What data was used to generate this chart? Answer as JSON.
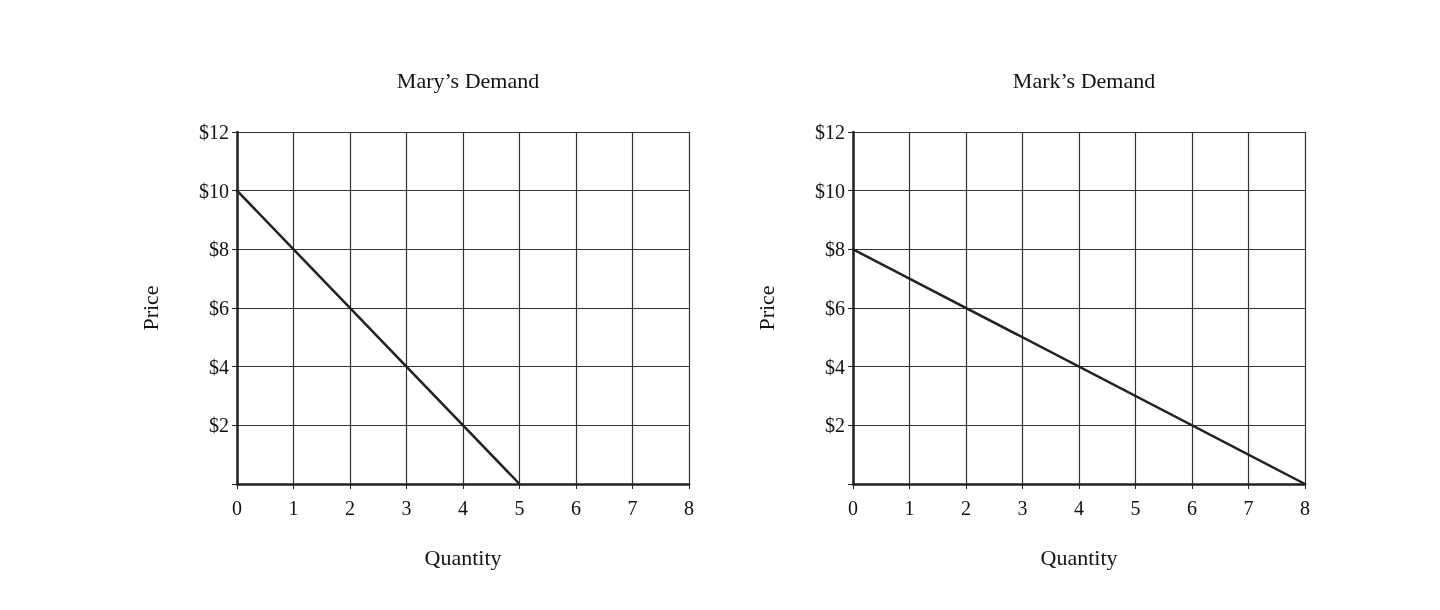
{
  "chart_data": [
    {
      "type": "line",
      "title": "Mary’s Demand",
      "xlabel": "Quantity",
      "ylabel": "Price",
      "x": [
        0,
        5
      ],
      "values": [
        10,
        0
      ],
      "color": "#222222",
      "xlim": [
        0,
        8
      ],
      "xticks": [
        0,
        1,
        2,
        3,
        4,
        5,
        6,
        7,
        8
      ],
      "ylim": [
        0,
        12
      ],
      "yticks": [
        {
          "value": 0,
          "label": null
        },
        {
          "value": 2,
          "label": "$2"
        },
        {
          "value": 4,
          "label": "$4"
        },
        {
          "value": 6,
          "label": "$6"
        },
        {
          "value": 8,
          "label": "$8"
        },
        {
          "value": 10,
          "label": "$10"
        },
        {
          "value": 12,
          "label": "$12"
        }
      ],
      "grid": true,
      "marker": "none",
      "line_style": "solid"
    },
    {
      "type": "line",
      "title": "Mark’s Demand",
      "xlabel": "Quantity",
      "ylabel": "Price",
      "x": [
        0,
        8
      ],
      "values": [
        8,
        0
      ],
      "color": "#222222",
      "xlim": [
        0,
        8
      ],
      "xticks": [
        0,
        1,
        2,
        3,
        4,
        5,
        6,
        7,
        8
      ],
      "ylim": [
        0,
        12
      ],
      "yticks": [
        {
          "value": 0,
          "label": null
        },
        {
          "value": 2,
          "label": "$2"
        },
        {
          "value": 4,
          "label": "$4"
        },
        {
          "value": 6,
          "label": "$6"
        },
        {
          "value": 8,
          "label": "$8"
        },
        {
          "value": 10,
          "label": "$10"
        },
        {
          "value": 12,
          "label": "$12"
        }
      ],
      "grid": true,
      "marker": "none",
      "line_style": "solid"
    }
  ]
}
